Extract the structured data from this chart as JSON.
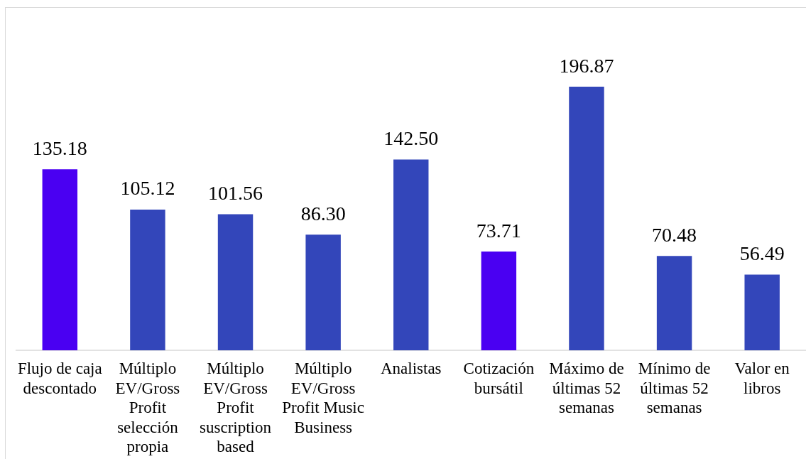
{
  "chart_data": {
    "type": "bar",
    "categories": [
      "Flujo de caja descontado",
      "Múltiplo EV/Gross Profit selección propia",
      "Múltiplo EV/Gross Profit suscription based",
      "Múltiplo EV/Gross Profit Music Business",
      "Analistas",
      "Cotización bursátil",
      "Máximo de últimas 52 semanas",
      "Mínimo de últimas 52 semanas",
      "Valor en libros"
    ],
    "values": [
      135.18,
      105.12,
      101.56,
      86.3,
      142.5,
      73.71,
      196.87,
      70.48,
      56.49
    ],
    "value_labels": [
      "135.18",
      "105.12",
      "101.56",
      "86.30",
      "142.50",
      "73.71",
      "196.87",
      "70.48",
      "56.49"
    ],
    "colors": [
      "#4a00f2",
      "#3346ba",
      "#3346ba",
      "#3346ba",
      "#3346ba",
      "#4a00f2",
      "#3346ba",
      "#3346ba",
      "#3346ba"
    ]
  }
}
